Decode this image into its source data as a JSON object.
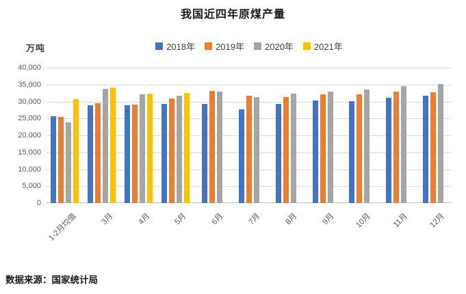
{
  "footer": {
    "source": "数据来源：国家统计局"
  },
  "colors": {
    "series_2018": "#4472C4",
    "series_2019": "#ED7D31",
    "series_2020": "#A5A5A5",
    "series_2021": "#FFC000",
    "gridline": "#d9d9d9",
    "axis_line": "#bfbfbf",
    "axis_text": "#595959",
    "title_text": "#1a1a1a"
  },
  "chart_data": {
    "type": "bar",
    "title": "我国近四年原煤产量",
    "ylabel": "万吨",
    "xlabel": "",
    "categories": [
      "1-2月均值",
      "3月",
      "4月",
      "5月",
      "6月",
      "7月",
      "8月",
      "9月",
      "10月",
      "11月",
      "12月"
    ],
    "series": [
      {
        "name": "2018年",
        "color": "#4472C4",
        "values": [
          25600,
          28800,
          29000,
          29400,
          29400,
          27700,
          29400,
          30400,
          30200,
          31200,
          31800
        ]
      },
      {
        "name": "2019年",
        "color": "#ED7D31",
        "values": [
          25500,
          29600,
          29100,
          31000,
          33100,
          31800,
          31400,
          32100,
          32200,
          33000,
          32800
        ]
      },
      {
        "name": "2020年",
        "color": "#A5A5A5",
        "values": [
          23900,
          33700,
          32100,
          31800,
          33000,
          31300,
          32300,
          32900,
          33500,
          34600,
          35200
        ]
      },
      {
        "name": "2021年",
        "color": "#FFC000",
        "values": [
          30700,
          34100,
          32300,
          32600,
          null,
          null,
          null,
          null,
          null,
          null,
          null
        ]
      }
    ],
    "ylim": [
      0,
      40000
    ],
    "y_tick_step": 5000,
    "y_ticks": [
      "0",
      "5,000",
      "10,000",
      "15,000",
      "20,000",
      "25,000",
      "30,000",
      "35,000",
      "40,000"
    ],
    "grid": true,
    "legend_position": "top"
  }
}
